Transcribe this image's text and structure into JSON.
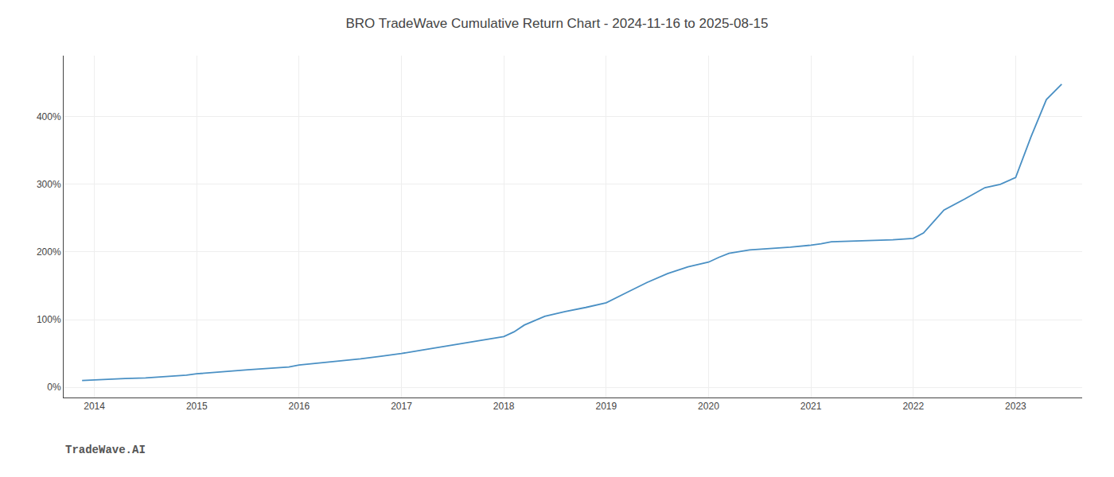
{
  "chart_data": {
    "type": "line",
    "title": "BRO TradeWave Cumulative Return Chart - 2024-11-16 to 2025-08-15",
    "annotations": [
      "TradeWave.AI"
    ],
    "x": [
      2013.88,
      2014.0,
      2014.15,
      2014.3,
      2014.5,
      2014.7,
      2014.9,
      2015.0,
      2015.15,
      2015.3,
      2015.5,
      2015.7,
      2015.9,
      2016.0,
      2016.2,
      2016.4,
      2016.6,
      2016.8,
      2017.0,
      2017.2,
      2017.4,
      2017.6,
      2017.8,
      2018.0,
      2018.1,
      2018.2,
      2018.4,
      2018.6,
      2018.8,
      2019.0,
      2019.2,
      2019.4,
      2019.6,
      2019.8,
      2020.0,
      2020.1,
      2020.2,
      2020.4,
      2020.6,
      2020.8,
      2021.0,
      2021.1,
      2021.2,
      2021.4,
      2021.6,
      2021.8,
      2022.0,
      2022.1,
      2022.2,
      2022.3,
      2022.5,
      2022.7,
      2022.85,
      2023.0,
      2023.15,
      2023.3,
      2023.45
    ],
    "values": [
      10,
      11,
      12,
      13,
      14,
      16,
      18,
      20,
      22,
      24,
      26,
      28,
      30,
      33,
      36,
      39,
      42,
      46,
      50,
      55,
      60,
      65,
      70,
      75,
      82,
      92,
      105,
      112,
      118,
      125,
      140,
      155,
      168,
      178,
      185,
      192,
      198,
      203,
      205,
      207,
      210,
      212,
      215,
      216,
      217,
      218,
      220,
      228,
      245,
      262,
      278,
      295,
      300,
      310,
      370,
      425,
      448
    ],
    "color": "#4a90c4",
    "xlim": [
      2013.7,
      2023.65
    ],
    "ylim": [
      -15,
      490
    ],
    "xticks": [
      2014,
      2015,
      2016,
      2017,
      2018,
      2019,
      2020,
      2021,
      2022,
      2023
    ],
    "yticks": [
      {
        "value": 0,
        "label": "0%"
      },
      {
        "value": 100,
        "label": "100%"
      },
      {
        "value": 200,
        "label": "200%"
      },
      {
        "value": 300,
        "label": "300%"
      },
      {
        "value": 400,
        "label": "400%"
      }
    ],
    "grid": true
  }
}
